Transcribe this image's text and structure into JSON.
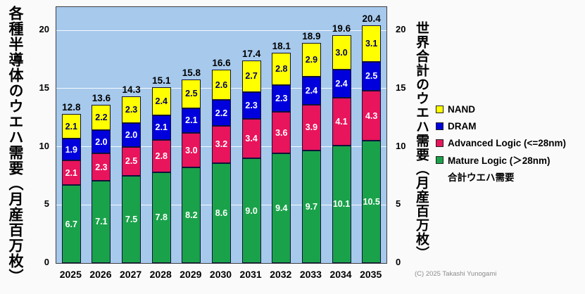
{
  "left_axis": {
    "title": "各種半導体のウエハ需要（月産百万枚）",
    "ticks": [
      0,
      5,
      10,
      15,
      20
    ]
  },
  "right_axis": {
    "title": "世界合計のウエハ需要（月産百万枚）",
    "ticks": [
      0,
      5,
      10,
      15,
      20
    ]
  },
  "legend": {
    "items": [
      {
        "label": "NAND",
        "color": "#ffff00"
      },
      {
        "label": "DRAM",
        "color": "#0000dd"
      },
      {
        "label": "Advanced Logic (<=28nm)",
        "color": "#e8145c"
      },
      {
        "label": "Mature Logic (＞28nm)",
        "color": "#1aa24a"
      },
      {
        "label": "合計ウエハ需要",
        "color": null
      }
    ]
  },
  "footer": {
    "copyright": "(C) 2025 Takashi Yunogami"
  },
  "chart_data": {
    "type": "bar",
    "stacked": true,
    "title": "",
    "xlabel": "",
    "ylabel_left": "各種半導体のウエハ需要（月産百万枚）",
    "ylabel_right": "世界合計のウエハ需要（月産百万枚）",
    "ylim": [
      0,
      22
    ],
    "gridlines": [
      5,
      10,
      15,
      20
    ],
    "grid": true,
    "legend_position": "right",
    "plot_background": "#a6c9ec",
    "categories": [
      2025,
      2026,
      2027,
      2028,
      2029,
      2030,
      2031,
      2032,
      2033,
      2034,
      2035
    ],
    "series": [
      {
        "key": "mature-logic",
        "name": "Mature Logic (＞28nm)",
        "color": "#1aa24a",
        "label_color": "#ffffff",
        "values": [
          6.7,
          7.1,
          7.5,
          7.8,
          8.2,
          8.6,
          9.0,
          9.4,
          9.7,
          10.1,
          10.5
        ]
      },
      {
        "key": "advanced-logic",
        "name": "Advanced Logic (<=28nm)",
        "color": "#e8145c",
        "label_color": "#ffffff",
        "values": [
          2.1,
          2.3,
          2.5,
          2.8,
          3.0,
          3.2,
          3.4,
          3.6,
          3.9,
          4.1,
          4.3
        ]
      },
      {
        "key": "dram",
        "name": "DRAM",
        "color": "#0000dd",
        "label_color": "#ffffff",
        "values": [
          1.9,
          2.0,
          2.0,
          2.1,
          2.1,
          2.2,
          2.3,
          2.3,
          2.4,
          2.4,
          2.5
        ]
      },
      {
        "key": "nand",
        "name": "NAND",
        "color": "#ffff00",
        "label_color": "#000066",
        "values": [
          2.1,
          2.2,
          2.3,
          2.4,
          2.5,
          2.6,
          2.7,
          2.8,
          2.9,
          3.0,
          3.1
        ]
      }
    ],
    "totals": [
      12.8,
      13.6,
      14.3,
      15.1,
      15.8,
      16.6,
      17.4,
      18.1,
      18.9,
      19.6,
      20.4
    ],
    "totals_name": "合計ウエハ需要"
  }
}
